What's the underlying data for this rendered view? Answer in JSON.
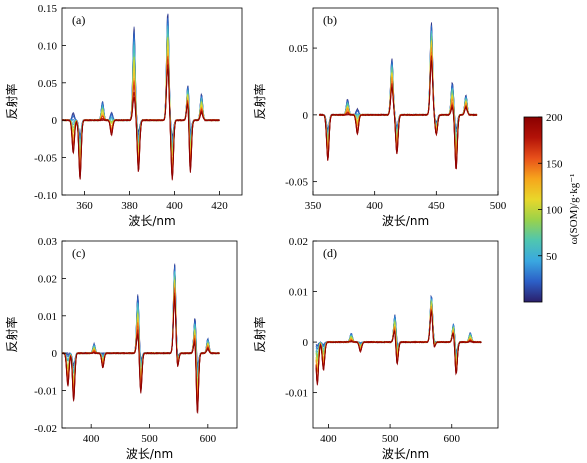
{
  "chart_data": [
    {
      "type": "line",
      "panel_label": "(a)",
      "xlabel": "波长/nm",
      "ylabel": "反射率",
      "xlim": [
        350,
        430
      ],
      "ylim": [
        -0.1,
        0.15
      ],
      "xticks": [
        360,
        380,
        400,
        420
      ],
      "yticks": [
        -0.1,
        -0.05,
        0,
        0.05,
        0.1,
        0.15
      ],
      "ytick_labels": [
        "-0.10",
        "-0.05",
        "0",
        "0.05",
        "0.10",
        "0.15"
      ],
      "x_data_range": [
        350,
        420
      ],
      "features": [
        {
          "x": 355,
          "y_low": -0.045,
          "y_high": 0.01
        },
        {
          "x": 358,
          "y_low": -0.08,
          "y_high": -0.02
        },
        {
          "x": 368,
          "y_low": 0.0,
          "y_high": 0.025
        },
        {
          "x": 372,
          "y_low": -0.02,
          "y_high": 0.01
        },
        {
          "x": 382,
          "y_low": 0.03,
          "y_high": 0.125
        },
        {
          "x": 384,
          "y_low": -0.07,
          "y_high": -0.015
        },
        {
          "x": 397,
          "y_low": 0.07,
          "y_high": 0.145
        },
        {
          "x": 399,
          "y_low": -0.08,
          "y_high": -0.02
        },
        {
          "x": 406,
          "y_low": 0.03,
          "y_high": 0.05
        },
        {
          "x": 407,
          "y_low": -0.075,
          "y_high": -0.02
        },
        {
          "x": 412,
          "y_low": 0.01,
          "y_high": 0.035
        }
      ]
    },
    {
      "type": "line",
      "panel_label": "(b)",
      "xlabel": "波长/nm",
      "ylabel": "反射率",
      "xlim": [
        350,
        500
      ],
      "ylim": [
        -0.06,
        0.08
      ],
      "xticks": [
        350,
        400,
        450,
        500
      ],
      "yticks": [
        -0.05,
        0,
        0.05
      ],
      "ytick_labels": [
        "-0.05",
        "0",
        "0.05"
      ],
      "x_data_range": [
        355,
        483
      ],
      "features": [
        {
          "x": 362,
          "y_low": -0.035,
          "y_high": -0.01
        },
        {
          "x": 378,
          "y_low": 0.0,
          "y_high": 0.012
        },
        {
          "x": 386,
          "y_low": -0.015,
          "y_high": 0.005
        },
        {
          "x": 414,
          "y_low": 0.02,
          "y_high": 0.043
        },
        {
          "x": 418,
          "y_low": -0.03,
          "y_high": -0.008
        },
        {
          "x": 446,
          "y_low": 0.04,
          "y_high": 0.07
        },
        {
          "x": 450,
          "y_low": -0.015,
          "y_high": -0.005
        },
        {
          "x": 463,
          "y_low": 0.005,
          "y_high": 0.025
        },
        {
          "x": 466,
          "y_low": -0.042,
          "y_high": -0.01
        },
        {
          "x": 474,
          "y_low": 0.005,
          "y_high": 0.015
        }
      ]
    },
    {
      "type": "line",
      "panel_label": "(c)",
      "xlabel": "波长/nm",
      "ylabel": "反射率",
      "xlim": [
        350,
        650
      ],
      "ylim": [
        -0.02,
        0.03
      ],
      "xticks": [
        400,
        500,
        600
      ],
      "yticks": [
        -0.02,
        -0.01,
        0,
        0.01,
        0.02,
        0.03
      ],
      "ytick_labels": [
        "-0.02",
        "-0.01",
        "0",
        "0.01",
        "0.02",
        "0.03"
      ],
      "x_data_range": [
        350,
        620
      ],
      "features": [
        {
          "x": 360,
          "y_low": -0.009,
          "y_high": 0.0
        },
        {
          "x": 370,
          "y_low": -0.013,
          "y_high": -0.003
        },
        {
          "x": 405,
          "y_low": 0.0,
          "y_high": 0.0025
        },
        {
          "x": 420,
          "y_low": -0.004,
          "y_high": 0.0
        },
        {
          "x": 480,
          "y_low": 0.005,
          "y_high": 0.016
        },
        {
          "x": 485,
          "y_low": -0.011,
          "y_high": -0.002
        },
        {
          "x": 543,
          "y_low": 0.015,
          "y_high": 0.024
        },
        {
          "x": 548,
          "y_low": -0.004,
          "y_high": -0.001
        },
        {
          "x": 578,
          "y_low": 0.004,
          "y_high": 0.01
        },
        {
          "x": 582,
          "y_low": -0.017,
          "y_high": -0.004
        },
        {
          "x": 600,
          "y_low": 0.001,
          "y_high": 0.004
        }
      ]
    },
    {
      "type": "line",
      "panel_label": "(d)",
      "xlabel": "波长/nm",
      "ylabel": "反射率",
      "xlim": [
        375,
        675
      ],
      "ylim": [
        -0.017,
        0.02
      ],
      "xticks": [
        400,
        500,
        600
      ],
      "yticks": [
        -0.01,
        0,
        0.01,
        0.02
      ],
      "ytick_labels": [
        "-0.01",
        "0",
        "0.01",
        "0.02"
      ],
      "x_data_range": [
        380,
        648
      ],
      "features": [
        {
          "x": 382,
          "y_low": -0.009,
          "y_high": 0.0
        },
        {
          "x": 392,
          "y_low": -0.006,
          "y_high": 0.0
        },
        {
          "x": 437,
          "y_low": 0.0,
          "y_high": 0.0018
        },
        {
          "x": 452,
          "y_low": -0.002,
          "y_high": 0.0
        },
        {
          "x": 508,
          "y_low": 0.003,
          "y_high": 0.006
        },
        {
          "x": 511,
          "y_low": -0.0055,
          "y_high": -0.001
        },
        {
          "x": 567,
          "y_low": 0.006,
          "y_high": 0.0095
        },
        {
          "x": 571,
          "y_low": -0.0015,
          "y_high": 0.0
        },
        {
          "x": 603,
          "y_low": 0.002,
          "y_high": 0.004
        },
        {
          "x": 607,
          "y_low": -0.007,
          "y_high": -0.002
        },
        {
          "x": 630,
          "y_low": 0.0,
          "y_high": 0.002
        }
      ]
    }
  ],
  "colorbar": {
    "label": "ω(SOM)/g·kg⁻¹",
    "min": 0,
    "max": 200,
    "ticks": [
      50,
      100,
      150,
      200
    ],
    "colormap": [
      "#2b1f6b",
      "#2c5fc7",
      "#3aa8e0",
      "#4fc6b0",
      "#9ad24a",
      "#e9d72a",
      "#f6a51c",
      "#e8501a",
      "#b31208",
      "#8a0000"
    ]
  },
  "series_count_per_panel": 24
}
